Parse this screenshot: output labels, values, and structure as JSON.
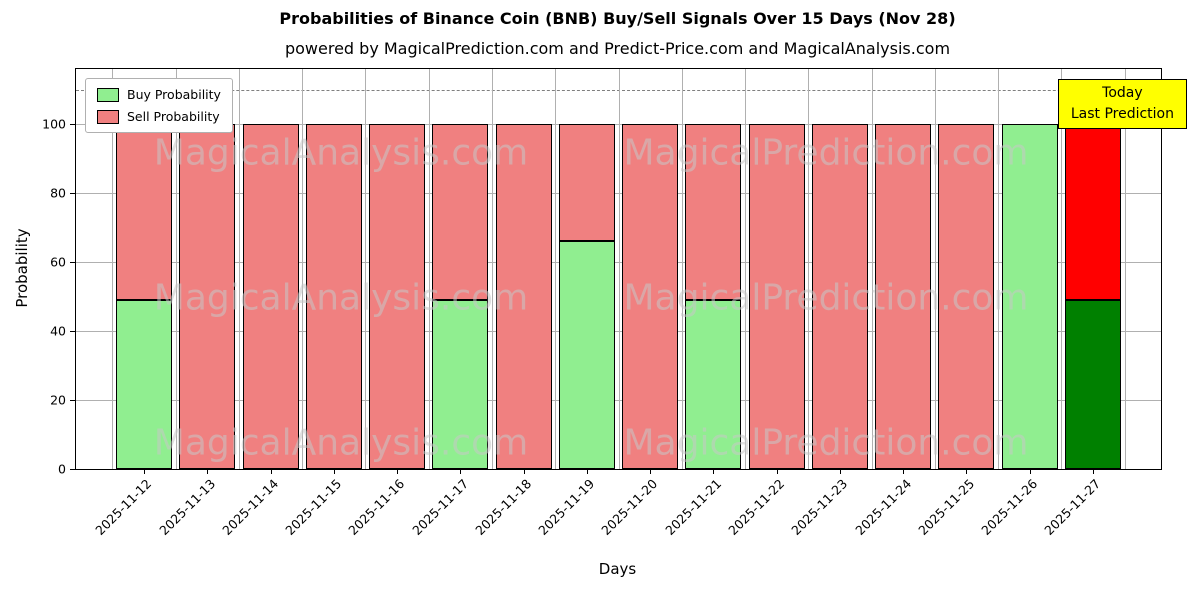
{
  "title": "Probabilities of Binance Coin (BNB) Buy/Sell Signals Over 15 Days (Nov 28)",
  "subtitle": "powered by MagicalPrediction.com and Predict-Price.com and MagicalAnalysis.com",
  "axes": {
    "xlabel": "Days",
    "ylabel": "Probability",
    "yticks": [
      0,
      20,
      40,
      60,
      80,
      100
    ]
  },
  "legend": {
    "items": [
      {
        "label": "Buy Probability",
        "color": "#90ee90"
      },
      {
        "label": "Sell Probability",
        "color": "#f08080"
      }
    ]
  },
  "annotation": {
    "line1": "Today",
    "line2": "Last Prediction",
    "bg": "#ffff00",
    "border": "#000000"
  },
  "watermark": {
    "left_text": "MagicalAnalysis.com",
    "right_text": "MagicalPrediction.com",
    "color": "#c8c8c8"
  },
  "chart_data": {
    "type": "bar",
    "stacked": true,
    "title": "Probabilities of Binance Coin (BNB) Buy/Sell Signals Over 15 Days (Nov 28)",
    "xlabel": "Days",
    "ylabel": "Probability",
    "categories": [
      "2025-11-12",
      "2025-11-13",
      "2025-11-14",
      "2025-11-15",
      "2025-11-16",
      "2025-11-17",
      "2025-11-18",
      "2025-11-19",
      "2025-11-20",
      "2025-11-21",
      "2025-11-22",
      "2025-11-23",
      "2025-11-24",
      "2025-11-25",
      "2025-11-26",
      "2025-11-27"
    ],
    "series": [
      {
        "name": "Buy Probability",
        "color": "#90ee90",
        "final_bar_color": "#008000",
        "values": [
          49,
          0,
          0,
          0,
          0,
          49,
          0,
          66,
          0,
          49,
          0,
          0,
          0,
          0,
          100,
          49
        ]
      },
      {
        "name": "Sell Probability",
        "color": "#f08080",
        "final_bar_color": "#ff0000",
        "values": [
          51,
          100,
          100,
          100,
          100,
          51,
          100,
          34,
          100,
          51,
          100,
          100,
          100,
          100,
          0,
          51
        ]
      }
    ],
    "ylim": [
      0,
      116
    ],
    "yticks": [
      0,
      20,
      40,
      60,
      80,
      100
    ],
    "dashed_line_y": 110,
    "bar_edge_color": "#000000",
    "grid": true,
    "legend_position": "upper left"
  }
}
